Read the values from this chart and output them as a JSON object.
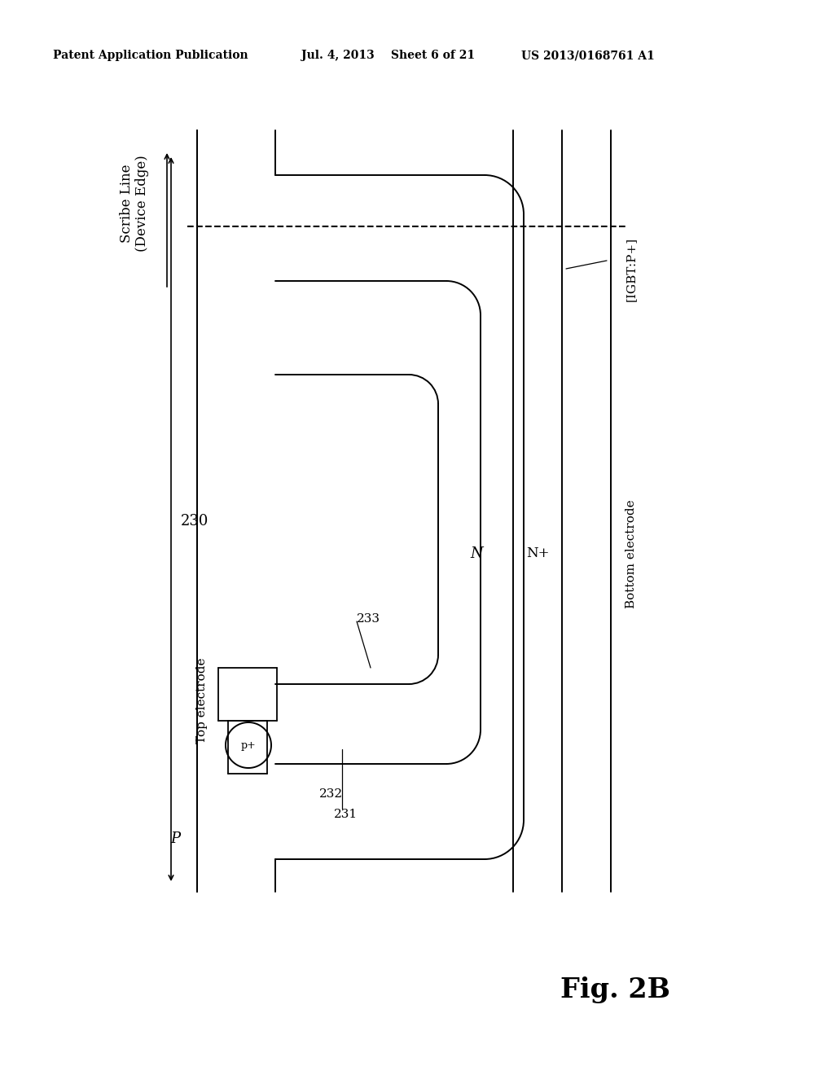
{
  "bg_color": "#ffffff",
  "header_text": "Patent Application Publication",
  "header_date": "Jul. 4, 2013",
  "header_sheet": "Sheet 6 of 21",
  "header_patent": "US 2013/0168761 A1",
  "fig_label": "Fig. 2B",
  "label_230": "230",
  "label_N": "N",
  "label_Nplus": "N+",
  "label_P": "P",
  "label_pplus": "p+",
  "label_231": "231",
  "label_232": "232",
  "label_233": "233",
  "label_top_electrode": "Top electrode",
  "label_bottom_electrode": "Bottom electrode",
  "label_scribe": "Scribe Line\n(Device Edge)",
  "label_igbt": "[IGBT:P+]"
}
